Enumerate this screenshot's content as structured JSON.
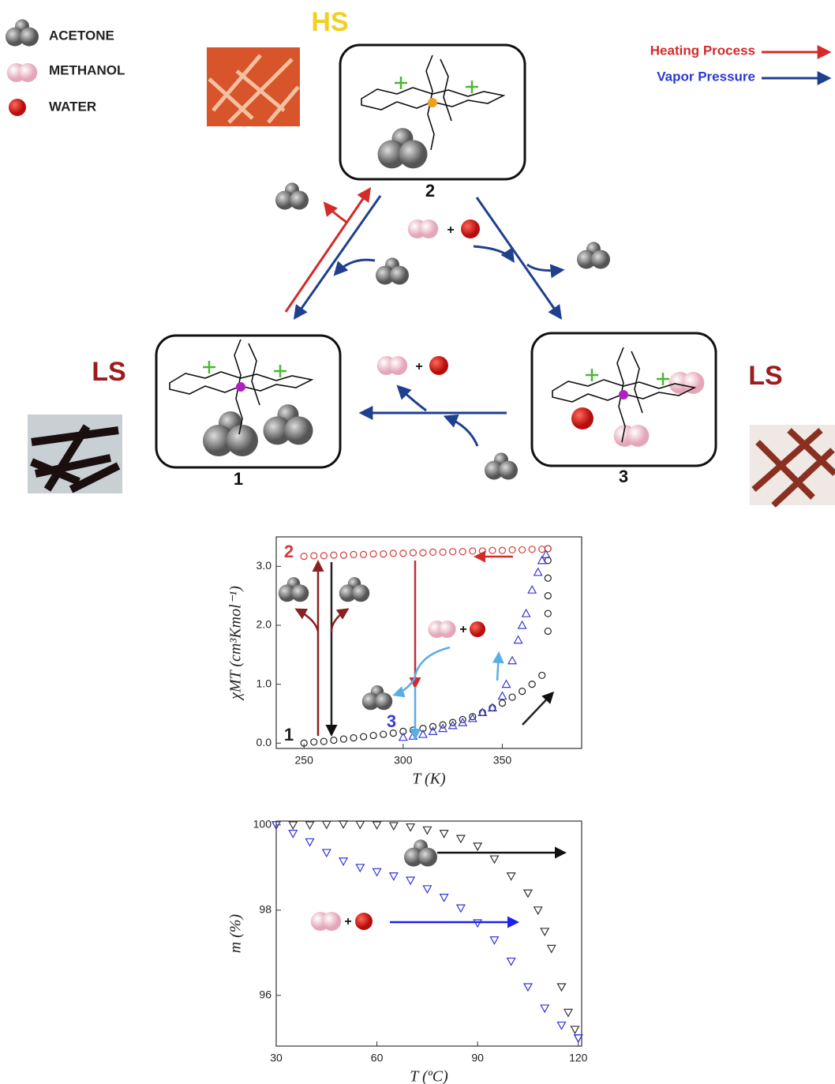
{
  "legend": {
    "items": [
      "ACETONE",
      "METHANOL",
      "WATER"
    ],
    "arrows": [
      "Heating Process",
      "Vapor Pressure"
    ]
  },
  "states": {
    "hs": "HS",
    "ls_left": "LS",
    "ls_right": "LS"
  },
  "nodes": [
    "1",
    "2",
    "3"
  ],
  "plus": "+",
  "chart_data": [
    {
      "type": "scatter",
      "ylabel": "χMT (cm³Kmol⁻¹)",
      "xlabel": "T (K)",
      "xlim": [
        236,
        390
      ],
      "ylim": [
        -0.09,
        3.5
      ],
      "xticks": [
        250,
        300,
        350
      ],
      "yticks": [
        {
          "value": 0,
          "label": "0.0"
        },
        {
          "value": 1,
          "label": "1.0"
        },
        {
          "value": 2,
          "label": "2.0"
        },
        {
          "value": 3,
          "label": "3.0"
        }
      ],
      "series": [
        {
          "name": "1",
          "color": "#222222",
          "marker": "circle",
          "x": [
            250,
            255,
            260,
            265,
            270,
            275,
            280,
            285,
            290,
            295,
            300,
            305,
            310,
            315,
            320,
            325,
            330,
            335,
            340,
            345,
            350,
            355,
            360,
            365,
            370,
            373,
            373,
            373,
            373,
            373,
            373
          ],
          "values": [
            0.0,
            0.02,
            0.03,
            0.05,
            0.07,
            0.09,
            0.11,
            0.13,
            0.15,
            0.17,
            0.2,
            0.22,
            0.25,
            0.28,
            0.31,
            0.35,
            0.4,
            0.45,
            0.52,
            0.6,
            0.68,
            0.78,
            0.88,
            1.0,
            1.15,
            1.9,
            2.2,
            2.5,
            2.8,
            3.1,
            3.3
          ]
        },
        {
          "name": "2",
          "color": "#d43a3a",
          "marker": "circle",
          "x": [
            250,
            255,
            260,
            265,
            270,
            275,
            280,
            285,
            290,
            295,
            300,
            305,
            310,
            315,
            320,
            325,
            330,
            335,
            340,
            345,
            350,
            355,
            360,
            365,
            370,
            373
          ],
          "values": [
            3.17,
            3.18,
            3.18,
            3.19,
            3.19,
            3.2,
            3.2,
            3.21,
            3.21,
            3.22,
            3.22,
            3.23,
            3.23,
            3.24,
            3.24,
            3.25,
            3.25,
            3.26,
            3.26,
            3.27,
            3.27,
            3.28,
            3.28,
            3.29,
            3.29,
            3.3
          ]
        },
        {
          "name": "3",
          "color": "#3a3ad0",
          "marker": "triangle",
          "x": [
            300,
            305,
            310,
            315,
            320,
            325,
            330,
            335,
            340,
            345,
            350,
            352,
            355,
            358,
            360,
            362,
            365,
            368,
            370,
            372
          ],
          "values": [
            0.1,
            0.12,
            0.15,
            0.2,
            0.25,
            0.3,
            0.35,
            0.42,
            0.52,
            0.6,
            0.8,
            1.0,
            1.4,
            1.75,
            2.0,
            2.2,
            2.6,
            2.9,
            3.1,
            3.2
          ]
        }
      ]
    },
    {
      "type": "scatter",
      "ylabel": "m (%)",
      "xlabel": "T (ºC)",
      "xlim": [
        30,
        121
      ],
      "ylim": [
        94.81,
        100.09
      ],
      "xticks": [
        30,
        60,
        90,
        120
      ],
      "yticks": [
        96,
        98,
        100
      ],
      "series": [
        {
          "color": "#333333",
          "marker": "triangle-down",
          "x": [
            30,
            35,
            40,
            45,
            50,
            55,
            60,
            65,
            70,
            75,
            80,
            85,
            90,
            95,
            100,
            105,
            108,
            110,
            112,
            115,
            117,
            119,
            120
          ],
          "values": [
            100,
            100,
            100,
            100.01,
            100.02,
            100.01,
            100,
            99.98,
            99.95,
            99.88,
            99.8,
            99.68,
            99.5,
            99.2,
            98.8,
            98.4,
            98,
            97.5,
            97.1,
            96.2,
            95.6,
            95.2,
            95.0
          ]
        },
        {
          "color": "#3333dd",
          "marker": "triangle-down",
          "x": [
            30,
            35,
            40,
            45,
            50,
            55,
            60,
            65,
            70,
            75,
            80,
            85,
            90,
            95,
            100,
            105,
            110,
            115,
            120
          ],
          "values": [
            100,
            99.8,
            99.6,
            99.35,
            99.15,
            99.0,
            98.9,
            98.8,
            98.7,
            98.5,
            98.3,
            98.05,
            97.7,
            97.3,
            96.8,
            96.2,
            95.7,
            95.3,
            95.0
          ]
        }
      ]
    }
  ]
}
